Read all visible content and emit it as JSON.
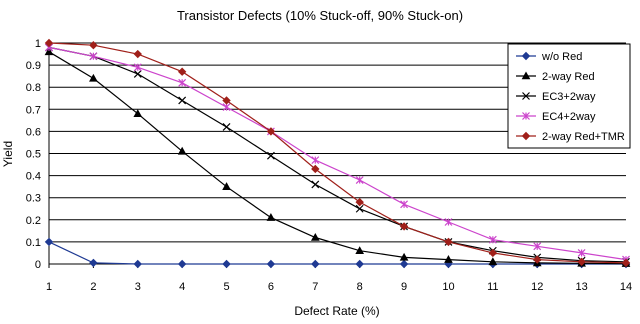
{
  "chart_data": {
    "type": "line",
    "title": "Transistor Defects  (10% Stuck-off, 90% Stuck-on)",
    "xlabel": "Defect Rate (%)",
    "ylabel": "Yield",
    "x": [
      1,
      2,
      3,
      4,
      5,
      6,
      7,
      8,
      9,
      10,
      11,
      12,
      13,
      14
    ],
    "xlim": [
      1,
      14
    ],
    "ylim": [
      0,
      1
    ],
    "yticks": [
      "0",
      "0.1",
      "0.2",
      "0.3",
      "0.4",
      "0.5",
      "0.6",
      "0.7",
      "0.8",
      "0.9",
      "1"
    ],
    "xticks": [
      "1",
      "2",
      "3",
      "4",
      "5",
      "6",
      "7",
      "8",
      "9",
      "10",
      "11",
      "12",
      "13",
      "14"
    ],
    "grid": "horizontal",
    "legend_position": "top-right",
    "series": [
      {
        "name": "w/o Red",
        "color": "#1f3a93",
        "marker": "diamond",
        "values": [
          0.1,
          0.005,
          0.0,
          0.0,
          0.0,
          0.0,
          0.0,
          0.0,
          0.0,
          0.0,
          0.0,
          0.0,
          0.0,
          0.0
        ]
      },
      {
        "name": "2-way Red",
        "color": "#000000",
        "marker": "triangle",
        "values": [
          0.96,
          0.84,
          0.68,
          0.51,
          0.35,
          0.21,
          0.12,
          0.06,
          0.03,
          0.02,
          0.01,
          0.005,
          0.003,
          0.002
        ]
      },
      {
        "name": "EC3+2way",
        "color": "#000000",
        "marker": "x",
        "values": [
          0.98,
          0.94,
          0.86,
          0.74,
          0.62,
          0.49,
          0.36,
          0.25,
          0.17,
          0.1,
          0.06,
          0.03,
          0.015,
          0.01
        ]
      },
      {
        "name": "EC4+2way",
        "color": "#cc44cc",
        "marker": "asterisk",
        "values": [
          0.98,
          0.94,
          0.89,
          0.82,
          0.71,
          0.6,
          0.47,
          0.38,
          0.27,
          0.19,
          0.11,
          0.08,
          0.05,
          0.02
        ]
      },
      {
        "name": "2-way Red+TMR",
        "color": "#a0201a",
        "marker": "diamond",
        "values": [
          1.0,
          0.99,
          0.95,
          0.87,
          0.74,
          0.6,
          0.43,
          0.28,
          0.17,
          0.1,
          0.05,
          0.02,
          0.01,
          0.005
        ]
      }
    ]
  }
}
